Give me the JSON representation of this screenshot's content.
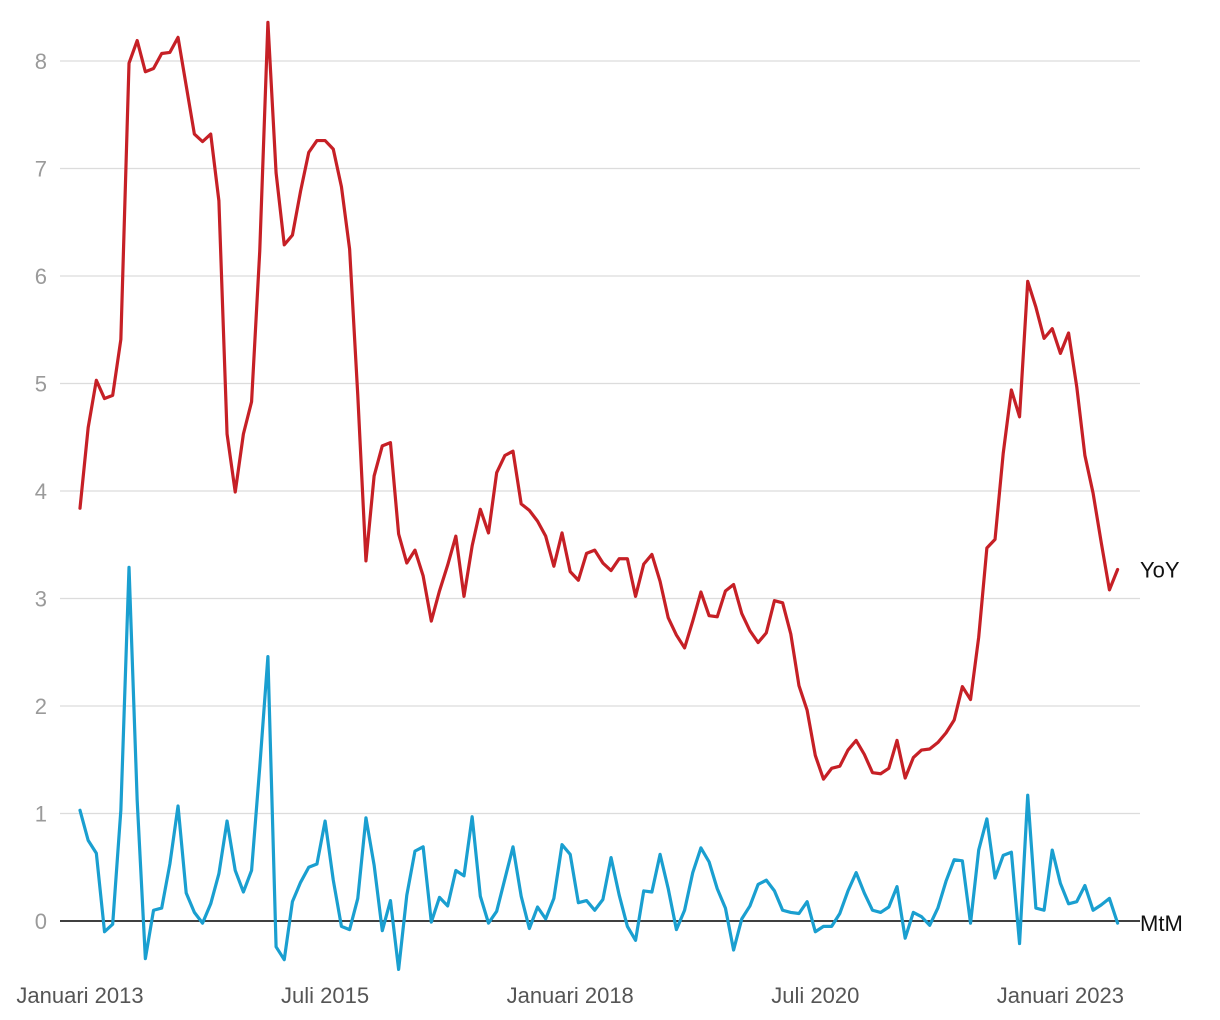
{
  "chart_data": {
    "type": "line",
    "title": "",
    "xlabel": "",
    "ylabel": "",
    "ylim": [
      0,
      8
    ],
    "yticks": [
      0,
      1,
      2,
      3,
      4,
      5,
      6,
      7,
      8
    ],
    "x_tick_labels": [
      {
        "x": "2013-01",
        "label": "Januari 2013"
      },
      {
        "x": "2015-07",
        "label": "Juli 2015"
      },
      {
        "x": "2018-01",
        "label": "Januari 2018"
      },
      {
        "x": "2020-07",
        "label": "Juli 2020"
      },
      {
        "x": "2023-01",
        "label": "Januari 2023"
      }
    ],
    "x_start": "2013-01",
    "grid": true,
    "legend": "none (series labelled at right end of lines)",
    "series": [
      {
        "name": "YoY",
        "color": "#c62026",
        "values": [
          3.84,
          4.59,
          5.03,
          4.86,
          4.89,
          5.41,
          7.98,
          8.19,
          7.9,
          7.93,
          8.07,
          8.08,
          8.22,
          7.77,
          7.32,
          7.25,
          7.32,
          6.7,
          4.53,
          3.99,
          4.53,
          4.83,
          6.23,
          8.36,
          6.96,
          6.29,
          6.38,
          6.79,
          7.15,
          7.26,
          7.26,
          7.18,
          6.83,
          6.25,
          4.89,
          3.35,
          4.14,
          4.42,
          4.45,
          3.6,
          3.33,
          3.45,
          3.21,
          2.79,
          3.07,
          3.31,
          3.58,
          3.02,
          3.49,
          3.83,
          3.61,
          4.17,
          4.33,
          4.37,
          3.88,
          3.82,
          3.72,
          3.58,
          3.3,
          3.61,
          3.25,
          3.17,
          3.42,
          3.45,
          3.33,
          3.26,
          3.37,
          3.37,
          3.02,
          3.32,
          3.41,
          3.16,
          2.82,
          2.66,
          2.54,
          2.79,
          3.06,
          2.84,
          2.83,
          3.07,
          3.13,
          2.86,
          2.7,
          2.59,
          2.68,
          2.98,
          2.96,
          2.67,
          2.19,
          1.96,
          1.54,
          1.32,
          1.42,
          1.44,
          1.59,
          1.68,
          1.55,
          1.38,
          1.37,
          1.42,
          1.68,
          1.33,
          1.52,
          1.59,
          1.6,
          1.66,
          1.75,
          1.87,
          2.18,
          2.06,
          2.64,
          3.47,
          3.55,
          4.35,
          4.94,
          4.69,
          5.95,
          5.71,
          5.42,
          5.51,
          5.28,
          5.47,
          4.97,
          4.33,
          3.98,
          3.52,
          3.08,
          3.27
        ]
      },
      {
        "name": "MtM",
        "color": "#1a9fd0",
        "values": [
          1.03,
          0.75,
          0.63,
          -0.1,
          -0.03,
          1.03,
          3.29,
          1.12,
          -0.35,
          0.1,
          0.12,
          0.53,
          1.07,
          0.26,
          0.08,
          -0.02,
          0.16,
          0.44,
          0.93,
          0.47,
          0.27,
          0.47,
          1.43,
          2.46,
          -0.24,
          -0.36,
          0.18,
          0.36,
          0.5,
          0.53,
          0.93,
          0.38,
          -0.05,
          -0.08,
          0.21,
          0.96,
          0.52,
          -0.09,
          0.19,
          -0.45,
          0.24,
          0.65,
          0.69,
          -0.01,
          0.22,
          0.14,
          0.47,
          0.42,
          0.97,
          0.23,
          -0.02,
          0.09,
          0.39,
          0.69,
          0.23,
          -0.07,
          0.13,
          0.02,
          0.21,
          0.71,
          0.62,
          0.17,
          0.19,
          0.1,
          0.2,
          0.59,
          0.24,
          -0.05,
          -0.18,
          0.28,
          0.27,
          0.62,
          0.3,
          -0.08,
          0.1,
          0.45,
          0.68,
          0.55,
          0.3,
          0.12,
          -0.27,
          0.02,
          0.14,
          0.34,
          0.38,
          0.28,
          0.1,
          0.08,
          0.07,
          0.18,
          -0.1,
          -0.05,
          -0.05,
          0.07,
          0.28,
          0.45,
          0.26,
          0.1,
          0.08,
          0.13,
          0.32,
          -0.16,
          0.08,
          0.04,
          -0.04,
          0.12,
          0.37,
          0.57,
          0.56,
          -0.02,
          0.66,
          0.95,
          0.4,
          0.61,
          0.64,
          -0.21,
          1.17,
          0.12,
          0.1,
          0.66,
          0.35,
          0.16,
          0.18,
          0.33,
          0.1,
          0.15,
          0.21,
          -0.02
        ]
      }
    ]
  }
}
